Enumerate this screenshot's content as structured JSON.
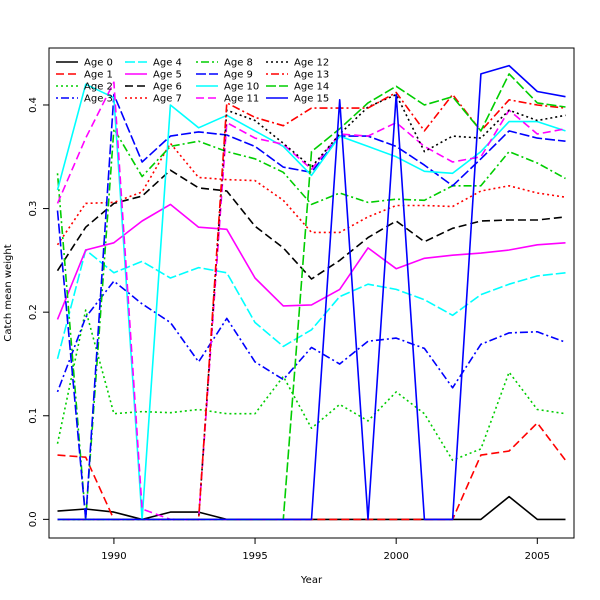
{
  "chart_data": {
    "type": "line",
    "title": "",
    "xlabel": "Year",
    "ylabel": "Catch mean weight",
    "xlim": [
      1987.7,
      2006.3
    ],
    "ylim": [
      -0.018,
      0.455
    ],
    "x": [
      1988,
      1989,
      1990,
      1991,
      1992,
      1993,
      1994,
      1995,
      1996,
      1997,
      1998,
      1999,
      2000,
      2001,
      2002,
      2003,
      2004,
      2005,
      2006
    ],
    "x_ticks": [
      1990,
      1995,
      2000,
      2005
    ],
    "y_ticks": [
      0.0,
      0.1,
      0.2,
      0.3,
      0.4
    ],
    "y_tick_labels": [
      "0.0",
      "0.1",
      "0.2",
      "0.3",
      "0.4"
    ],
    "grid": false,
    "legend_position": "top-left",
    "series": [
      {
        "name": "Age 0",
        "color": "#000000",
        "dash": "solid",
        "values": [
          0.008,
          0.01,
          0.007,
          0.0,
          0.007,
          0.007,
          0.0,
          0.0,
          0.0,
          0.0,
          0.0,
          0.0,
          0.0,
          0.0,
          0.0,
          0.0,
          0.022,
          0.0,
          0.0
        ]
      },
      {
        "name": "Age 1",
        "color": "#FF0000",
        "dash": "dashed",
        "values": [
          0.062,
          0.06,
          0.0,
          0.0,
          0.0,
          0.0,
          0.0,
          0.0,
          0.0,
          0.0,
          0.0,
          0.0,
          0.0,
          0.0,
          0.0,
          0.062,
          0.066,
          0.093,
          0.057
        ]
      },
      {
        "name": "Age 2",
        "color": "#00CD00",
        "dash": "dotted",
        "values": [
          0.073,
          0.202,
          0.102,
          0.104,
          0.103,
          0.106,
          0.102,
          0.102,
          0.138,
          0.088,
          0.111,
          0.095,
          0.123,
          0.102,
          0.057,
          0.068,
          0.142,
          0.106,
          0.102
        ]
      },
      {
        "name": "Age 3",
        "color": "#0000FF",
        "dash": "dotdash",
        "values": [
          0.123,
          0.195,
          0.23,
          0.208,
          0.19,
          0.152,
          0.194,
          0.152,
          0.135,
          0.166,
          0.15,
          0.172,
          0.175,
          0.165,
          0.127,
          0.169,
          0.18,
          0.181,
          0.171
        ]
      },
      {
        "name": "Age 4",
        "color": "#00FFFF",
        "dash": "longdash",
        "values": [
          0.155,
          0.26,
          0.238,
          0.249,
          0.233,
          0.243,
          0.238,
          0.19,
          0.167,
          0.183,
          0.215,
          0.227,
          0.222,
          0.212,
          0.197,
          0.217,
          0.227,
          0.235,
          0.238
        ]
      },
      {
        "name": "Age 5",
        "color": "#FF00FF",
        "dash": "solid",
        "values": [
          0.193,
          0.26,
          0.267,
          0.288,
          0.304,
          0.282,
          0.28,
          0.233,
          0.206,
          0.207,
          0.222,
          0.262,
          0.242,
          0.252,
          0.255,
          0.257,
          0.26,
          0.265,
          0.267
        ]
      },
      {
        "name": "Age 6",
        "color": "#000000",
        "dash": "dashed",
        "values": [
          0.24,
          0.282,
          0.305,
          0.312,
          0.337,
          0.32,
          0.317,
          0.283,
          0.262,
          0.232,
          0.25,
          0.272,
          0.288,
          0.268,
          0.281,
          0.288,
          0.289,
          0.289,
          0.292
        ]
      },
      {
        "name": "Age 7",
        "color": "#FF0000",
        "dash": "dotted",
        "values": [
          0.265,
          0.305,
          0.306,
          0.316,
          0.363,
          0.33,
          0.328,
          0.327,
          0.308,
          0.277,
          0.277,
          0.292,
          0.303,
          0.303,
          0.302,
          0.317,
          0.322,
          0.315,
          0.311
        ]
      },
      {
        "name": "Age 8",
        "color": "#00CD00",
        "dash": "dotdash",
        "values": [
          0.334,
          0.0,
          0.377,
          0.331,
          0.36,
          0.365,
          0.355,
          0.348,
          0.335,
          0.304,
          0.315,
          0.306,
          0.309,
          0.308,
          0.322,
          0.322,
          0.355,
          0.344,
          0.329
        ]
      },
      {
        "name": "Age 9",
        "color": "#0000FF",
        "dash": "longdash",
        "values": [
          0.298,
          0.0,
          0.41,
          0.345,
          0.37,
          0.374,
          0.371,
          0.36,
          0.34,
          0.335,
          0.37,
          0.37,
          0.36,
          0.342,
          0.322,
          0.348,
          0.375,
          0.368,
          0.365
        ]
      },
      {
        "name": "Age 10",
        "color": "#00FFFF",
        "dash": "solid",
        "values": [
          0.318,
          0.42,
          0.407,
          0.0,
          0.4,
          0.378,
          0.39,
          0.375,
          0.36,
          0.332,
          0.37,
          0.36,
          0.35,
          0.336,
          0.334,
          0.355,
          0.384,
          0.384,
          0.375
        ]
      },
      {
        "name": "Age 11",
        "color": "#FF00FF",
        "dash": "dashed",
        "values": [
          0.305,
          0.368,
          0.422,
          0.01,
          0.0,
          0.0,
          0.383,
          0.368,
          0.362,
          0.338,
          0.372,
          0.37,
          0.383,
          0.36,
          0.345,
          0.35,
          0.395,
          0.372,
          0.377
        ]
      },
      {
        "name": "Age 12",
        "color": "#000000",
        "dash": "dotted",
        "values": [
          0.0,
          0.0,
          0.0,
          0.0,
          0.0,
          0.0,
          0.395,
          0.385,
          0.363,
          0.34,
          0.372,
          0.398,
          0.41,
          0.355,
          0.37,
          0.368,
          0.395,
          0.385,
          0.39
        ]
      },
      {
        "name": "Age 13",
        "color": "#FF0000",
        "dash": "dotdash",
        "values": [
          0.0,
          0.0,
          0.0,
          0.0,
          0.0,
          0.0,
          0.402,
          0.388,
          0.38,
          0.397,
          0.397,
          0.397,
          0.412,
          0.375,
          0.41,
          0.375,
          0.405,
          0.4,
          0.397
        ]
      },
      {
        "name": "Age 14",
        "color": "#00CD00",
        "dash": "longdash",
        "values": [
          0.0,
          0.0,
          0.0,
          0.0,
          0.0,
          0.0,
          0.0,
          0.0,
          0.0,
          0.355,
          0.377,
          0.402,
          0.418,
          0.4,
          0.408,
          0.375,
          0.43,
          0.402,
          0.398
        ]
      },
      {
        "name": "Age 15",
        "color": "#0000FF",
        "dash": "solid",
        "values": [
          0.0,
          0.0,
          0.0,
          0.0,
          0.0,
          0.0,
          0.0,
          0.0,
          0.0,
          0.0,
          0.405,
          0.0,
          0.41,
          0.0,
          0.0,
          0.43,
          0.438,
          0.413,
          0.408
        ]
      }
    ]
  }
}
